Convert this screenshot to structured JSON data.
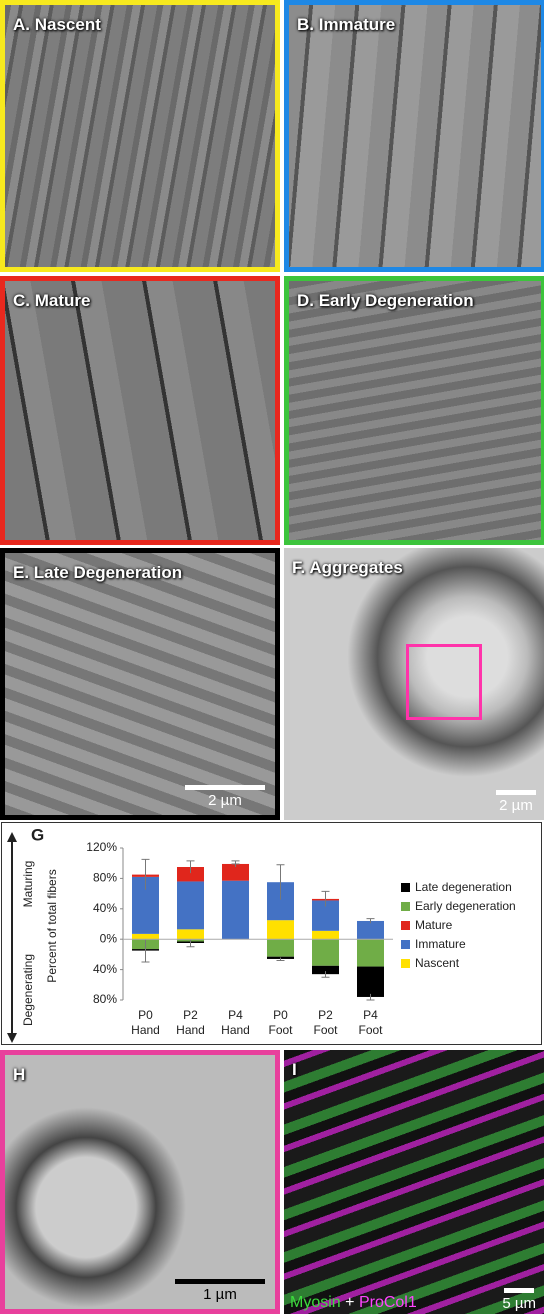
{
  "panels": {
    "a": {
      "label": "A. Nascent"
    },
    "b": {
      "label": "B. Immature"
    },
    "c": {
      "label": "C. Mature"
    },
    "d": {
      "label": "D. Early Degeneration"
    },
    "e": {
      "label": "E. Late Degeneration",
      "scale": "2 µm"
    },
    "f": {
      "label": "F. Aggregates",
      "scale": "2 µm"
    },
    "h": {
      "label": "H",
      "scale": "1 µm"
    },
    "i": {
      "label": "I",
      "stain1": "Myosin",
      "plus": "+",
      "stain2": "ProCol1",
      "scale": "5 µm"
    }
  },
  "chart_data": {
    "type": "bar",
    "stacked": true,
    "panel_label": "G",
    "ylabel": "Percent of total fibers",
    "side_labels": [
      "Maturing",
      "Degenerating"
    ],
    "categories": [
      [
        "P0",
        "Hand"
      ],
      [
        "P2",
        "Hand"
      ],
      [
        "P4",
        "Hand"
      ],
      [
        "P0",
        "Foot"
      ],
      [
        "P2",
        "Foot"
      ],
      [
        "P4",
        "Foot"
      ]
    ],
    "ylim": [
      -80,
      120
    ],
    "yticks": [
      {
        "value": 120,
        "label": "120%"
      },
      {
        "value": 80,
        "label": "80%"
      },
      {
        "value": 40,
        "label": "40%"
      },
      {
        "value": 0,
        "label": "0%"
      },
      {
        "value": -40,
        "label": "40%"
      },
      {
        "value": -80,
        "label": "80%"
      }
    ],
    "series": [
      {
        "name": "Late degeneration",
        "color": "#000000",
        "values": [
          -2,
          -2,
          0,
          -3,
          -11,
          -40
        ],
        "errors": [
          15,
          5,
          0,
          2,
          4,
          4
        ]
      },
      {
        "name": "Early degeneration",
        "color": "#70ad47",
        "values": [
          -13,
          -3,
          0,
          -23,
          -35,
          -36
        ]
      },
      {
        "name": "Mature",
        "color": "#e0261c",
        "values": [
          3,
          19,
          22,
          0,
          2,
          0
        ],
        "errors": [
          20,
          8,
          4,
          23,
          10,
          3
        ]
      },
      {
        "name": "Immature",
        "color": "#4472c4",
        "values": [
          75,
          63,
          77,
          50,
          40,
          24
        ]
      },
      {
        "name": "Nascent",
        "color": "#ffe000",
        "values": [
          7,
          13,
          0,
          25,
          11,
          0
        ]
      }
    ]
  }
}
